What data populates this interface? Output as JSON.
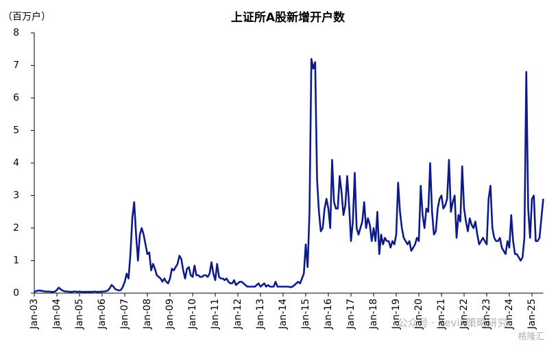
{
  "chart_data": {
    "type": "line",
    "title": "上证所A股新增开户数",
    "y_unit_label": "（百万户）",
    "categories": [
      "Jan-03",
      null,
      null,
      null,
      null,
      null,
      null,
      null,
      null,
      null,
      null,
      null,
      "Jan-04",
      null,
      null,
      null,
      null,
      null,
      null,
      null,
      null,
      null,
      null,
      null,
      "Jan-05",
      null,
      null,
      null,
      null,
      null,
      null,
      null,
      null,
      null,
      null,
      null,
      "Jan-06",
      null,
      null,
      null,
      null,
      null,
      null,
      null,
      null,
      null,
      null,
      null,
      "Jan-07",
      null,
      null,
      null,
      null,
      null,
      null,
      null,
      null,
      null,
      null,
      null,
      "Jan-08",
      null,
      null,
      null,
      null,
      null,
      null,
      null,
      null,
      null,
      null,
      null,
      "Jan-09",
      null,
      null,
      null,
      null,
      null,
      null,
      null,
      null,
      null,
      null,
      null,
      "Jan-10",
      null,
      null,
      null,
      null,
      null,
      null,
      null,
      null,
      null,
      null,
      null,
      "Jan-11",
      null,
      null,
      null,
      null,
      null,
      null,
      null,
      null,
      null,
      null,
      null,
      "Jan-12",
      null,
      null,
      null,
      null,
      null,
      null,
      null,
      null,
      null,
      null,
      null,
      "Jan-13",
      null,
      null,
      null,
      null,
      null,
      null,
      null,
      null,
      null,
      null,
      null,
      "Jan-14",
      null,
      null,
      null,
      null,
      null,
      null,
      null,
      null,
      null,
      null,
      null,
      "Jan-15",
      null,
      null,
      null,
      null,
      null,
      null,
      null,
      null,
      null,
      null,
      null,
      "Jan-16",
      null,
      null,
      null,
      null,
      null,
      null,
      null,
      null,
      null,
      null,
      null,
      "Jan-17",
      null,
      null,
      null,
      null,
      null,
      null,
      null,
      null,
      null,
      null,
      null,
      "Jan-18",
      null,
      null,
      null,
      null,
      null,
      null,
      null,
      null,
      null,
      null,
      null,
      "Jan-19",
      null,
      null,
      null,
      null,
      null,
      null,
      null,
      null,
      null,
      null,
      null,
      "Jan-20",
      null,
      null,
      null,
      null,
      null,
      null,
      null,
      null,
      null,
      null,
      null,
      "Jan-21",
      null,
      null,
      null,
      null,
      null,
      null,
      null,
      null,
      null,
      null,
      null,
      "Jan-22",
      null,
      null,
      null,
      null,
      null,
      null,
      null,
      null,
      null,
      null,
      null,
      "Jan-23",
      null,
      null,
      null,
      null,
      null,
      null,
      null,
      null,
      null,
      null,
      null,
      "Jan-24",
      null,
      null,
      null,
      null,
      null,
      null,
      null,
      null,
      null,
      null,
      null,
      "Jan-25",
      null,
      null,
      null,
      null,
      null,
      null
    ],
    "series": [
      {
        "name": "上证所A股新增开户数",
        "color": "#0c1a8a",
        "values": [
          0.05,
          0.06,
          0.08,
          0.08,
          0.07,
          0.06,
          0.05,
          0.05,
          0.05,
          0.04,
          0.04,
          0.05,
          0.1,
          0.17,
          0.12,
          0.08,
          0.06,
          0.05,
          0.05,
          0.04,
          0.04,
          0.05,
          0.05,
          0.04,
          0.05,
          0.04,
          0.04,
          0.04,
          0.04,
          0.04,
          0.04,
          0.04,
          0.05,
          0.04,
          0.04,
          0.04,
          0.05,
          0.05,
          0.06,
          0.08,
          0.15,
          0.25,
          0.2,
          0.12,
          0.1,
          0.08,
          0.1,
          0.2,
          0.35,
          0.6,
          0.45,
          1.2,
          2.3,
          2.8,
          1.8,
          1.0,
          1.8,
          2.0,
          1.8,
          1.5,
          1.2,
          1.25,
          0.7,
          0.9,
          0.75,
          0.55,
          0.5,
          0.45,
          0.35,
          0.45,
          0.35,
          0.3,
          0.45,
          0.75,
          0.7,
          0.8,
          0.9,
          1.15,
          1.05,
          0.7,
          0.45,
          0.75,
          0.8,
          0.55,
          0.5,
          0.85,
          0.55,
          0.55,
          0.5,
          0.5,
          0.55,
          0.55,
          0.5,
          0.6,
          0.95,
          0.6,
          0.4,
          0.9,
          0.5,
          0.45,
          0.45,
          0.4,
          0.45,
          0.35,
          0.3,
          0.3,
          0.4,
          0.25,
          0.3,
          0.35,
          0.35,
          0.3,
          0.25,
          0.2,
          0.2,
          0.2,
          0.2,
          0.2,
          0.25,
          0.3,
          0.2,
          0.25,
          0.3,
          0.2,
          0.25,
          0.2,
          0.2,
          0.2,
          0.35,
          0.2,
          0.2,
          0.2,
          0.2,
          0.2,
          0.2,
          0.2,
          0.18,
          0.2,
          0.25,
          0.3,
          0.35,
          0.3,
          0.45,
          0.6,
          1.5,
          0.8,
          2.5,
          7.2,
          6.9,
          7.1,
          3.5,
          2.5,
          1.9,
          2.0,
          2.6,
          2.9,
          2.6,
          2.0,
          4.1,
          2.8,
          2.6,
          2.6,
          3.6,
          3.1,
          2.4,
          2.7,
          3.6,
          2.7,
          1.6,
          2.2,
          3.7,
          2.0,
          1.8,
          2.0,
          2.2,
          2.8,
          2.0,
          2.3,
          2.1,
          1.6,
          2.0,
          1.6,
          2.5,
          1.2,
          1.8,
          1.5,
          1.7,
          1.6,
          1.6,
          1.4,
          1.6,
          1.5,
          1.8,
          3.4,
          2.5,
          2.0,
          1.7,
          1.6,
          1.5,
          1.6,
          1.3,
          1.4,
          1.5,
          1.7,
          1.6,
          3.3,
          2.4,
          2.0,
          2.6,
          2.5,
          4.0,
          2.5,
          1.8,
          1.9,
          2.6,
          2.9,
          3.0,
          2.6,
          2.7,
          2.9,
          4.1,
          2.5,
          2.8,
          3.0,
          1.7,
          2.4,
          2.2,
          3.9,
          2.6,
          2.2,
          1.9,
          2.3,
          2.1,
          2.0,
          2.2,
          1.8,
          1.5,
          1.6,
          1.7,
          1.6,
          1.5,
          2.9,
          3.3,
          2.0,
          1.7,
          1.6,
          1.6,
          1.7,
          1.4,
          1.3,
          1.2,
          1.6,
          1.4,
          2.4,
          1.6,
          1.2,
          1.2,
          1.1,
          1.0,
          1.1,
          1.7,
          6.8,
          2.6,
          1.7,
          2.9,
          3.0,
          1.6,
          1.6,
          1.7,
          2.3,
          2.9
        ]
      }
    ],
    "ylim": [
      0,
      8
    ],
    "yticks": [
      0,
      1,
      2,
      3,
      4,
      5,
      6,
      7,
      8
    ],
    "watermark": [
      "公众号 · Kevin策略研究",
      "格隆汇"
    ]
  }
}
